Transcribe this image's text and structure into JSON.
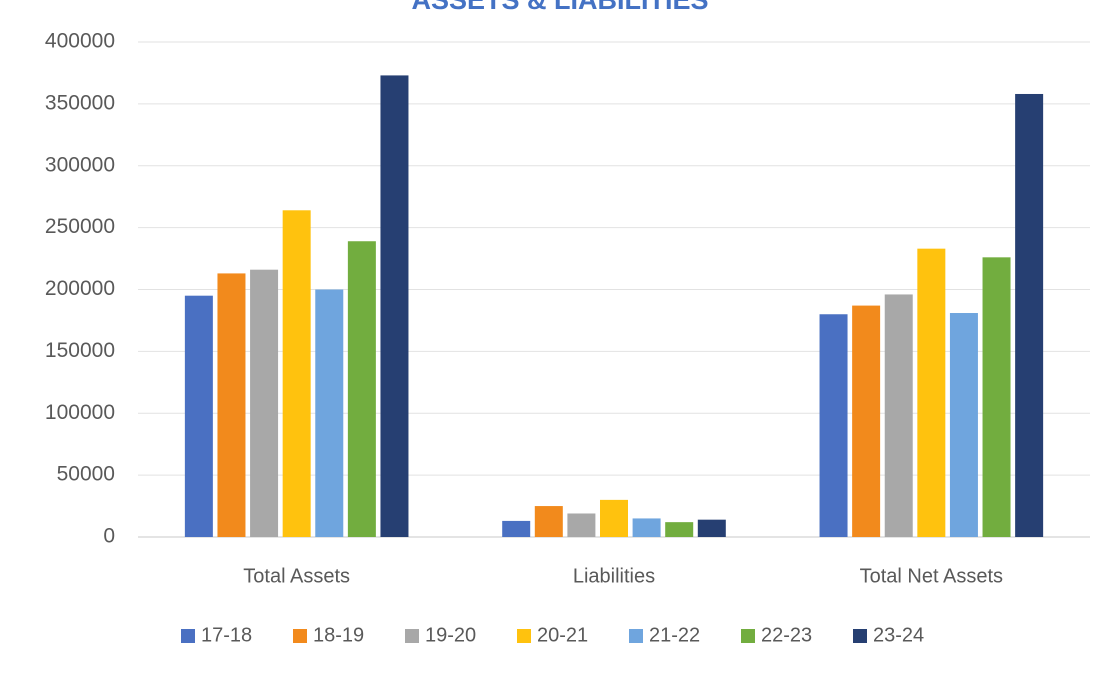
{
  "chart_data": {
    "type": "bar",
    "title": "ASSETS & LIABILITIES",
    "categories": [
      "Total Assets",
      "Liabilities",
      "Total Net Assets"
    ],
    "series": [
      {
        "name": "17-18",
        "color": "#4a70c2",
        "values": [
          195000,
          13000,
          180000
        ]
      },
      {
        "name": "18-19",
        "color": "#f28a1c",
        "values": [
          213000,
          25000,
          187000
        ]
      },
      {
        "name": "19-20",
        "color": "#a8a8a8",
        "values": [
          216000,
          19000,
          196000
        ]
      },
      {
        "name": "20-21",
        "color": "#ffc20e",
        "values": [
          264000,
          30000,
          233000
        ]
      },
      {
        "name": "21-22",
        "color": "#6fa5de",
        "values": [
          200000,
          15000,
          181000
        ]
      },
      {
        "name": "22-23",
        "color": "#72ad3f",
        "values": [
          239000,
          12000,
          226000
        ]
      },
      {
        "name": "23-24",
        "color": "#263f72",
        "values": [
          373000,
          14000,
          358000
        ]
      }
    ],
    "ylim": [
      0,
      400000
    ],
    "yticks": [
      0,
      50000,
      100000,
      150000,
      200000,
      250000,
      300000,
      350000,
      400000
    ],
    "grid": true,
    "legend": "bottom"
  }
}
